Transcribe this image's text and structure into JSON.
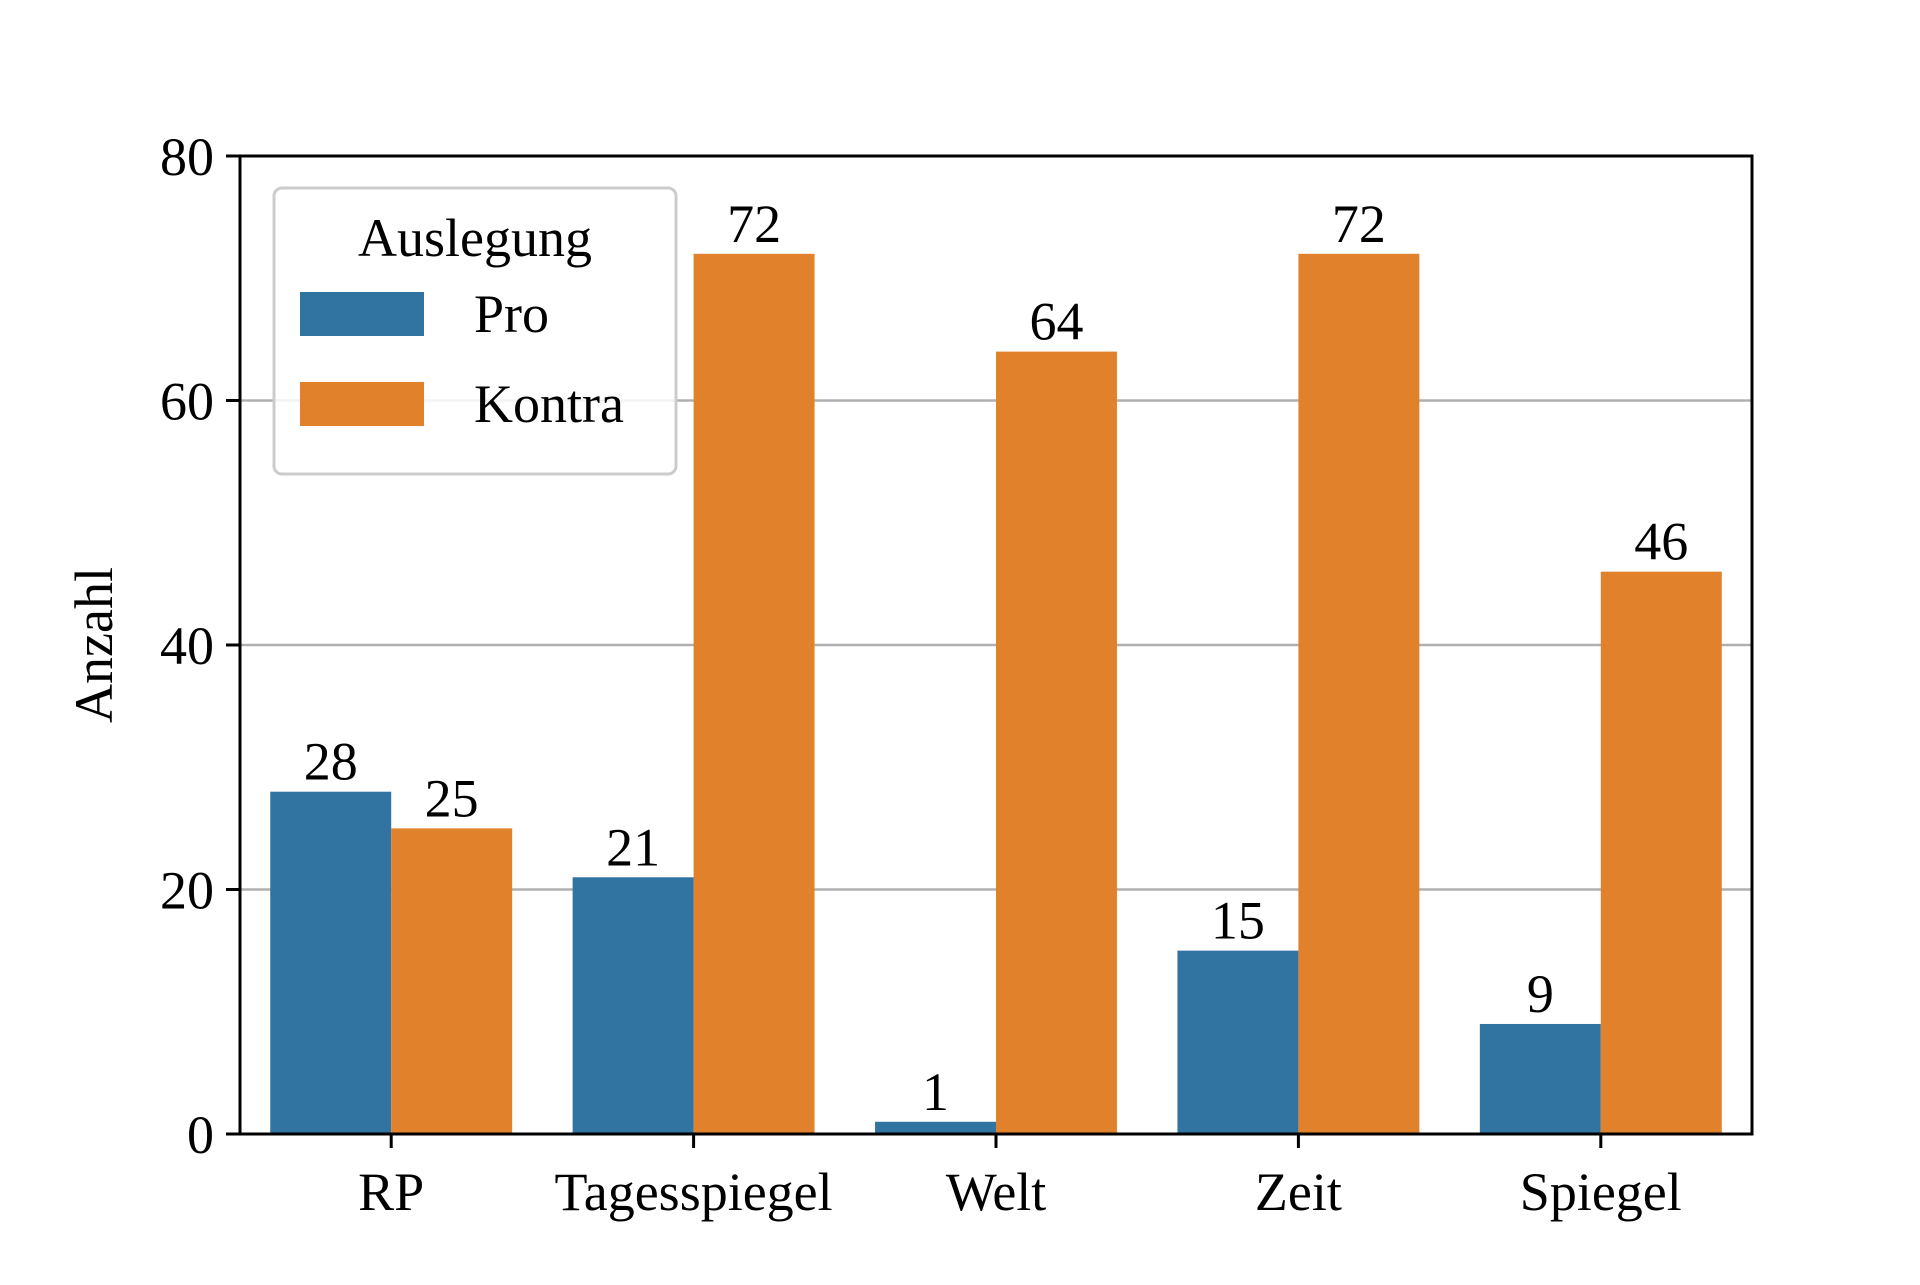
{
  "chart_data": {
    "type": "bar",
    "title": "",
    "xlabel": "",
    "ylabel": "Anzahl",
    "categories": [
      "RP",
      "Tagesspiegel",
      "Welt",
      "Zeit",
      "Spiegel"
    ],
    "series": [
      {
        "name": "Pro",
        "color": "#3274a1",
        "values": [
          28,
          21,
          1,
          15,
          9
        ]
      },
      {
        "name": "Kontra",
        "color": "#e1812c",
        "values": [
          25,
          72,
          64,
          72,
          46
        ]
      }
    ],
    "ylim": [
      0,
      80
    ],
    "yticks": [
      0,
      20,
      40,
      60,
      80
    ],
    "grid": "horizontal",
    "legend": {
      "title": "Auslegung",
      "position": "top-left"
    },
    "data_labels": true
  }
}
